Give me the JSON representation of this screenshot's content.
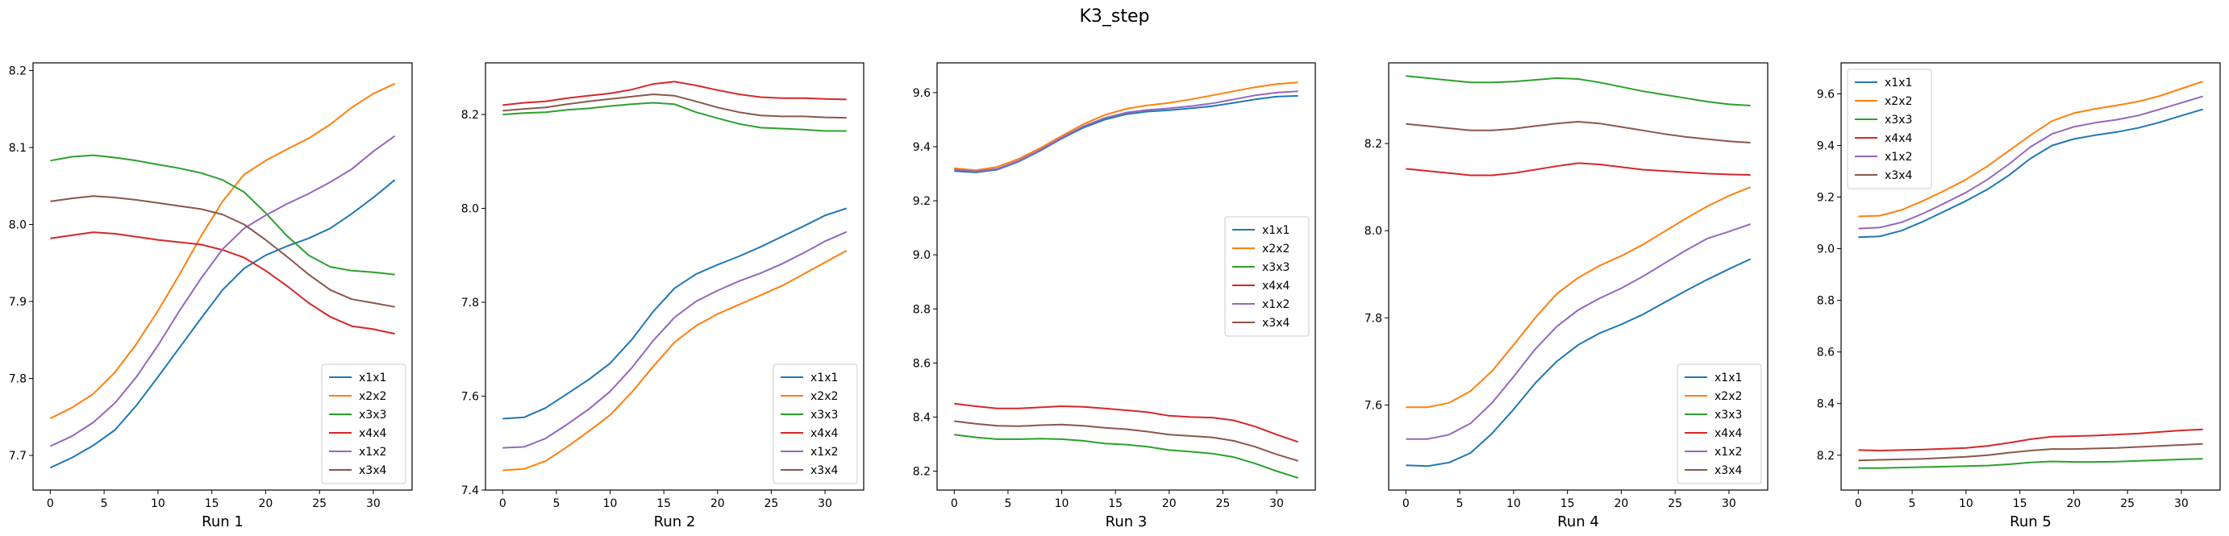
{
  "title": "K3_step",
  "series_names": [
    "x1x1",
    "x2x2",
    "x3x3",
    "x4x4",
    "x1x2",
    "x3x4"
  ],
  "series_colors": [
    "#1f77b4",
    "#ff7f0e",
    "#2ca02c",
    "#d62728",
    "#9467bd",
    "#8c564b"
  ],
  "chart_data": [
    {
      "type": "line",
      "xlabel": "Run 1",
      "xlim": [
        -1.6,
        33.6
      ],
      "ylim": [
        7.655,
        8.21
      ],
      "xticks": [
        0,
        5,
        10,
        15,
        20,
        25,
        30
      ],
      "yticks": [
        7.7,
        7.8,
        7.9,
        8.0,
        8.1,
        8.2
      ],
      "ytick_labels": [
        "7.7",
        "7.8",
        "7.9",
        "8.0",
        "8.1",
        "8.2"
      ],
      "legend": "lower-right",
      "x": [
        0,
        2,
        4,
        6,
        8,
        10,
        12,
        14,
        16,
        18,
        20,
        22,
        24,
        26,
        28,
        30,
        32
      ],
      "series": [
        {
          "name": "x1x1",
          "values": [
            7.684,
            7.697,
            7.713,
            7.733,
            7.765,
            7.802,
            7.84,
            7.878,
            7.915,
            7.943,
            7.96,
            7.972,
            7.982,
            7.995,
            8.014,
            8.035,
            8.058
          ]
        },
        {
          "name": "x2x2",
          "values": [
            7.748,
            7.762,
            7.78,
            7.808,
            7.845,
            7.888,
            7.935,
            7.985,
            8.03,
            8.065,
            8.083,
            8.098,
            8.112,
            8.13,
            8.152,
            8.17,
            8.183
          ]
        },
        {
          "name": "x3x3",
          "values": [
            8.083,
            8.088,
            8.09,
            8.087,
            8.083,
            8.078,
            8.073,
            8.067,
            8.058,
            8.042,
            8.015,
            7.985,
            7.96,
            7.945,
            7.94,
            7.938,
            7.935
          ]
        },
        {
          "name": "x4x4",
          "values": [
            7.982,
            7.986,
            7.99,
            7.988,
            7.984,
            7.98,
            7.977,
            7.974,
            7.967,
            7.957,
            7.94,
            7.92,
            7.898,
            7.88,
            7.868,
            7.864,
            7.858
          ]
        },
        {
          "name": "x1x2",
          "values": [
            7.712,
            7.725,
            7.743,
            7.768,
            7.802,
            7.843,
            7.888,
            7.93,
            7.968,
            7.995,
            8.012,
            8.027,
            8.04,
            8.055,
            8.072,
            8.095,
            8.115
          ]
        },
        {
          "name": "x3x4",
          "values": [
            8.03,
            8.034,
            8.037,
            8.035,
            8.032,
            8.028,
            8.024,
            8.02,
            8.013,
            8.0,
            7.98,
            7.958,
            7.935,
            7.915,
            7.903,
            7.898,
            7.893
          ]
        }
      ]
    },
    {
      "type": "line",
      "xlabel": "Run 2",
      "xlim": [
        -1.6,
        33.6
      ],
      "ylim": [
        7.4,
        8.31
      ],
      "xticks": [
        0,
        5,
        10,
        15,
        20,
        25,
        30
      ],
      "yticks": [
        7.4,
        7.6,
        7.8,
        8.0,
        8.2
      ],
      "ytick_labels": [
        "7.4",
        "7.6",
        "7.8",
        "8.0",
        "8.2"
      ],
      "legend": "lower-right",
      "x": [
        0,
        2,
        4,
        6,
        8,
        10,
        12,
        14,
        16,
        18,
        20,
        22,
        24,
        26,
        28,
        30,
        32
      ],
      "series": [
        {
          "name": "x1x1",
          "values": [
            7.552,
            7.555,
            7.575,
            7.605,
            7.635,
            7.67,
            7.72,
            7.78,
            7.83,
            7.86,
            7.88,
            7.898,
            7.918,
            7.94,
            7.962,
            7.985,
            8.0
          ]
        },
        {
          "name": "x2x2",
          "values": [
            7.442,
            7.445,
            7.462,
            7.492,
            7.525,
            7.56,
            7.608,
            7.663,
            7.715,
            7.75,
            7.775,
            7.795,
            7.815,
            7.835,
            7.86,
            7.885,
            7.91
          ]
        },
        {
          "name": "x3x3",
          "values": [
            8.2,
            8.203,
            8.205,
            8.21,
            8.213,
            8.218,
            8.222,
            8.225,
            8.222,
            8.205,
            8.192,
            8.18,
            8.172,
            8.17,
            8.168,
            8.165,
            8.165
          ]
        },
        {
          "name": "x4x4",
          "values": [
            8.22,
            8.225,
            8.228,
            8.235,
            8.24,
            8.245,
            8.253,
            8.265,
            8.27,
            8.262,
            8.252,
            8.243,
            8.237,
            8.235,
            8.235,
            8.233,
            8.232
          ]
        },
        {
          "name": "x1x2",
          "values": [
            7.49,
            7.492,
            7.51,
            7.54,
            7.572,
            7.61,
            7.66,
            7.718,
            7.768,
            7.802,
            7.825,
            7.845,
            7.862,
            7.882,
            7.905,
            7.93,
            7.95
          ]
        },
        {
          "name": "x3x4",
          "values": [
            8.208,
            8.212,
            8.215,
            8.222,
            8.228,
            8.233,
            8.238,
            8.243,
            8.24,
            8.228,
            8.215,
            8.205,
            8.198,
            8.196,
            8.196,
            8.194,
            8.193
          ]
        }
      ]
    },
    {
      "type": "line",
      "xlabel": "Run 3",
      "xlim": [
        -1.6,
        33.6
      ],
      "ylim": [
        8.13,
        9.71
      ],
      "xticks": [
        0,
        5,
        10,
        15,
        20,
        25,
        30
      ],
      "yticks": [
        8.2,
        8.4,
        8.6,
        8.8,
        9.0,
        9.2,
        9.4,
        9.6
      ],
      "ytick_labels": [
        "8.2",
        "8.4",
        "8.6",
        "8.8",
        "9.0",
        "9.2",
        "9.4",
        "9.6"
      ],
      "legend": "center-right",
      "x": [
        0,
        2,
        4,
        6,
        8,
        10,
        12,
        14,
        16,
        18,
        20,
        22,
        24,
        26,
        28,
        30,
        32
      ],
      "series": [
        {
          "name": "x1x1",
          "values": [
            9.31,
            9.305,
            9.315,
            9.345,
            9.385,
            9.43,
            9.47,
            9.5,
            9.52,
            9.53,
            9.535,
            9.542,
            9.55,
            9.562,
            9.575,
            9.585,
            9.588
          ]
        },
        {
          "name": "x2x2",
          "values": [
            9.32,
            9.313,
            9.325,
            9.355,
            9.395,
            9.44,
            9.483,
            9.517,
            9.54,
            9.553,
            9.562,
            9.575,
            9.59,
            9.605,
            9.62,
            9.632,
            9.638
          ]
        },
        {
          "name": "x3x3",
          "values": [
            8.335,
            8.325,
            8.318,
            8.318,
            8.32,
            8.318,
            8.312,
            8.302,
            8.298,
            8.29,
            8.278,
            8.272,
            8.265,
            8.252,
            8.228,
            8.2,
            8.175
          ]
        },
        {
          "name": "x4x4",
          "values": [
            8.45,
            8.44,
            8.432,
            8.432,
            8.436,
            8.44,
            8.438,
            8.432,
            8.425,
            8.418,
            8.405,
            8.4,
            8.398,
            8.388,
            8.365,
            8.335,
            8.308
          ]
        },
        {
          "name": "x1x2",
          "values": [
            9.315,
            9.308,
            9.318,
            9.348,
            9.388,
            9.433,
            9.475,
            9.506,
            9.526,
            9.536,
            9.542,
            9.55,
            9.56,
            9.575,
            9.59,
            9.6,
            9.605
          ]
        },
        {
          "name": "x3x4",
          "values": [
            8.385,
            8.375,
            8.368,
            8.366,
            8.37,
            8.372,
            8.368,
            8.36,
            8.355,
            8.346,
            8.335,
            8.33,
            8.325,
            8.312,
            8.29,
            8.262,
            8.238
          ]
        }
      ]
    },
    {
      "type": "line",
      "xlabel": "Run 4",
      "xlim": [
        -1.6,
        33.6
      ],
      "ylim": [
        7.405,
        8.385
      ],
      "xticks": [
        0,
        5,
        10,
        15,
        20,
        25,
        30
      ],
      "yticks": [
        7.6,
        7.8,
        8.0,
        8.2
      ],
      "ytick_labels": [
        "7.6",
        "7.8",
        "8.0",
        "8.2"
      ],
      "legend": "lower-right",
      "x": [
        0,
        2,
        4,
        6,
        8,
        10,
        12,
        14,
        16,
        18,
        20,
        22,
        24,
        26,
        28,
        30,
        32
      ],
      "series": [
        {
          "name": "x1x1",
          "values": [
            7.462,
            7.46,
            7.468,
            7.49,
            7.535,
            7.59,
            7.65,
            7.7,
            7.738,
            7.765,
            7.785,
            7.808,
            7.835,
            7.862,
            7.888,
            7.912,
            7.935
          ]
        },
        {
          "name": "x2x2",
          "values": [
            7.595,
            7.595,
            7.605,
            7.632,
            7.678,
            7.738,
            7.8,
            7.855,
            7.892,
            7.92,
            7.942,
            7.968,
            7.998,
            8.028,
            8.056,
            8.08,
            8.1
          ]
        },
        {
          "name": "x3x3",
          "values": [
            8.355,
            8.35,
            8.345,
            8.34,
            8.34,
            8.342,
            8.346,
            8.35,
            8.348,
            8.34,
            8.33,
            8.32,
            8.312,
            8.304,
            8.296,
            8.29,
            8.287
          ]
        },
        {
          "name": "x4x4",
          "values": [
            8.142,
            8.137,
            8.132,
            8.127,
            8.127,
            8.132,
            8.14,
            8.148,
            8.155,
            8.152,
            8.146,
            8.14,
            8.137,
            8.134,
            8.131,
            8.129,
            8.128
          ]
        },
        {
          "name": "x1x2",
          "values": [
            7.522,
            7.522,
            7.532,
            7.558,
            7.605,
            7.665,
            7.728,
            7.78,
            7.818,
            7.845,
            7.868,
            7.895,
            7.925,
            7.955,
            7.982,
            7.998,
            8.015
          ]
        },
        {
          "name": "x3x4",
          "values": [
            8.245,
            8.24,
            8.235,
            8.23,
            8.23,
            8.234,
            8.24,
            8.246,
            8.25,
            8.246,
            8.238,
            8.23,
            8.222,
            8.215,
            8.21,
            8.205,
            8.202
          ]
        }
      ]
    },
    {
      "type": "line",
      "xlabel": "Run 5",
      "xlim": [
        -1.6,
        33.6
      ],
      "ylim": [
        8.065,
        9.72
      ],
      "xticks": [
        0,
        5,
        10,
        15,
        20,
        25,
        30
      ],
      "yticks": [
        8.2,
        8.4,
        8.6,
        8.8,
        9.0,
        9.2,
        9.4,
        9.6
      ],
      "ytick_labels": [
        "8.2",
        "8.4",
        "8.6",
        "8.8",
        "9.0",
        "9.2",
        "9.4",
        "9.6"
      ],
      "legend": "upper-left",
      "x": [
        0,
        2,
        4,
        6,
        8,
        10,
        12,
        14,
        16,
        18,
        20,
        22,
        24,
        26,
        28,
        30,
        32
      ],
      "series": [
        {
          "name": "x1x1",
          "values": [
            9.045,
            9.048,
            9.07,
            9.105,
            9.145,
            9.185,
            9.23,
            9.285,
            9.35,
            9.4,
            9.425,
            9.44,
            9.452,
            9.468,
            9.49,
            9.515,
            9.54
          ]
        },
        {
          "name": "x2x2",
          "values": [
            9.125,
            9.128,
            9.15,
            9.185,
            9.225,
            9.268,
            9.32,
            9.38,
            9.44,
            9.495,
            9.525,
            9.542,
            9.555,
            9.57,
            9.592,
            9.62,
            9.648
          ]
        },
        {
          "name": "x3x3",
          "values": [
            8.15,
            8.15,
            8.152,
            8.154,
            8.156,
            8.158,
            8.16,
            8.165,
            8.172,
            8.176,
            8.174,
            8.174,
            8.175,
            8.178,
            8.181,
            8.184,
            8.186
          ]
        },
        {
          "name": "x4x4",
          "values": [
            8.22,
            8.218,
            8.22,
            8.222,
            8.225,
            8.228,
            8.236,
            8.248,
            8.262,
            8.272,
            8.274,
            8.276,
            8.28,
            8.284,
            8.29,
            8.296,
            8.3
          ]
        },
        {
          "name": "x1x2",
          "values": [
            9.078,
            9.082,
            9.102,
            9.136,
            9.176,
            9.218,
            9.268,
            9.328,
            9.395,
            9.445,
            9.472,
            9.488,
            9.5,
            9.516,
            9.54,
            9.565,
            9.59
          ]
        },
        {
          "name": "x3x4",
          "values": [
            8.18,
            8.182,
            8.184,
            8.186,
            8.19,
            8.194,
            8.2,
            8.21,
            8.218,
            8.224,
            8.224,
            8.226,
            8.228,
            8.232,
            8.236,
            8.24,
            8.244
          ]
        }
      ]
    }
  ]
}
